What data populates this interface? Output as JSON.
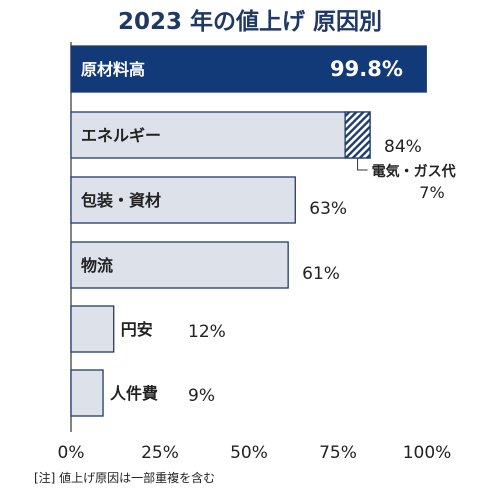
{
  "chart_data": {
    "type": "bar",
    "orientation": "horizontal",
    "title": "2023 年の値上げ 原因別",
    "categories": [
      "原材料高",
      "エネルギー",
      "包装・資材",
      "物流",
      "円安",
      "人件費"
    ],
    "values": [
      99.8,
      84,
      63,
      61,
      12,
      9
    ],
    "value_labels": [
      "99.8%",
      "84%",
      "63%",
      "61%",
      "12%",
      "9%"
    ],
    "sub_segment": {
      "name": "電気・ガス代",
      "parent": "エネルギー",
      "value": 7,
      "label": "7%",
      "pattern": "diagonal-hatch"
    },
    "xlim": [
      0,
      100
    ],
    "xticks": [
      0,
      25,
      50,
      75,
      100
    ],
    "xtick_labels": [
      "0%",
      "25%",
      "50%",
      "75%",
      "100%"
    ],
    "grid": false,
    "legend": "none",
    "note": "[注] 値上げ原因は一部重複を含む",
    "colors": {
      "highlight_bar": "#123a78",
      "bar_fill": "#dde2ea",
      "bar_stroke": "#1f3c6e",
      "title": "#1f3864",
      "text": "#222222"
    }
  }
}
